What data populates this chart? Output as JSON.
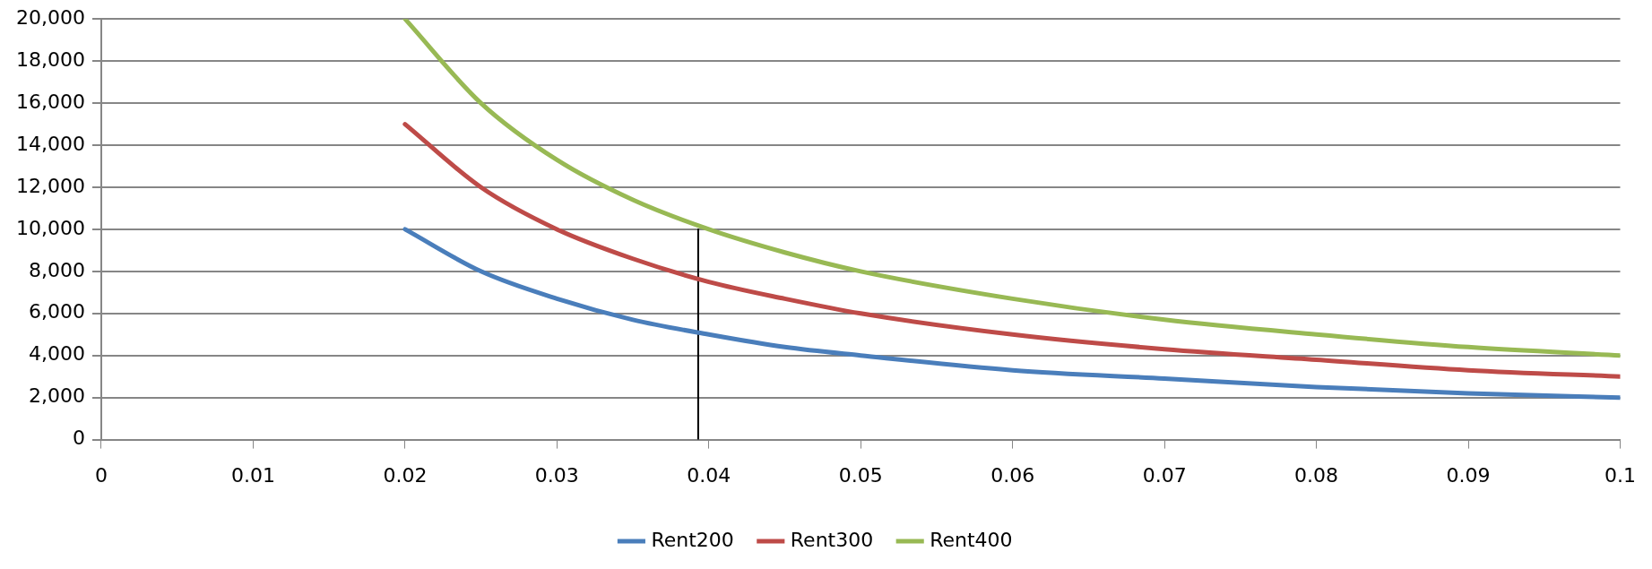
{
  "chart_data": {
    "type": "line",
    "x": [
      0.02,
      0.025,
      0.03,
      0.035,
      0.04,
      0.045,
      0.05,
      0.06,
      0.07,
      0.08,
      0.09,
      0.1
    ],
    "series": [
      {
        "name": "Rent200",
        "color": "#4a7ebb",
        "values": [
          10000,
          8000,
          6700,
          5700,
          5000,
          4400,
          4000,
          3300,
          2900,
          2500,
          2200,
          2000
        ]
      },
      {
        "name": "Rent300",
        "color": "#be4b48",
        "values": [
          15000,
          12000,
          10000,
          8600,
          7500,
          6700,
          6000,
          5000,
          4300,
          3800,
          3300,
          3000
        ]
      },
      {
        "name": "Rent400",
        "color": "#98b954",
        "values": [
          20000,
          16000,
          13300,
          11400,
          10000,
          8900,
          8000,
          6700,
          5700,
          5000,
          4400,
          4000
        ]
      },
      {
        "color": "#000000",
        "x": [
          0.0393,
          0.0393
        ],
        "values": [
          0,
          10000
        ]
      }
    ],
    "xlim": [
      0,
      0.1
    ],
    "xticks": [
      0,
      0.01,
      0.02,
      0.03,
      0.04,
      0.05,
      0.06,
      0.07,
      0.08,
      0.09,
      0.1
    ],
    "ylim": [
      0,
      20000
    ],
    "yticks": [
      0,
      {
        "value": 2000,
        "label": "2,000"
      },
      {
        "value": 4000,
        "label": "4,000"
      },
      {
        "value": 6000,
        "label": "6,000"
      },
      {
        "value": 8000,
        "label": "8,000"
      },
      {
        "value": 10000,
        "label": "10,000"
      },
      {
        "value": 12000,
        "label": "12,000"
      },
      {
        "value": 14000,
        "label": "14,000"
      },
      {
        "value": 16000,
        "label": "16,000"
      },
      {
        "value": 18000,
        "label": "18,000"
      },
      {
        "value": 20000,
        "label": "20,000"
      }
    ],
    "grid": "y",
    "legend": "bottom",
    "marker": "none",
    "line_style": "solid"
  }
}
